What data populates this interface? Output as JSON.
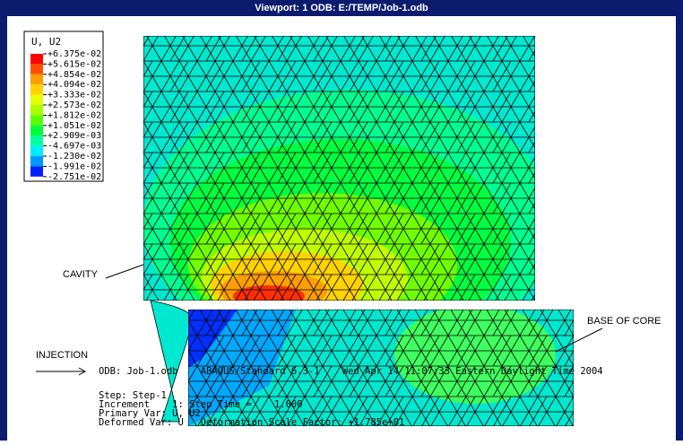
{
  "viewport": {
    "title": "Viewport: 1    ODB: E:/TEMP/Job-1.odb"
  },
  "legend": {
    "title": "U, U2",
    "labels": [
      "+6.375e-02",
      "+5.615e-02",
      "+4.854e-02",
      "+4.094e-02",
      "+3.333e-02",
      "+2.573e-02",
      "+1.812e-02",
      "+1.051e-02",
      "+2.909e-03",
      "-4.697e-03",
      "-1.230e-02",
      "-1.991e-02",
      "-2.751e-02"
    ],
    "colors": [
      "#ff0000",
      "#ff4e00",
      "#ff9e00",
      "#ffd200",
      "#e6ff00",
      "#a8ff00",
      "#5cff00",
      "#00ff36",
      "#00ffa0",
      "#00ecff",
      "#0096ff",
      "#0020ff"
    ]
  },
  "annotations": {
    "cavity": "CAVITY",
    "injection": "INJECTION",
    "base_of_core": "BASE OF CORE"
  },
  "status": [
    "ODB: Job-1.odb    ABAQUS/Standard 6.3-1    Wed Apr 14 11:07:33 Eastern Daylight Time 2004",
    "Step: Step-1",
    "Increment    1: Step Time =    1.000",
    "Primary Var: U, U2",
    "Deformed Var: U   Deformation Scale Factor: +1.785e+01"
  ]
}
